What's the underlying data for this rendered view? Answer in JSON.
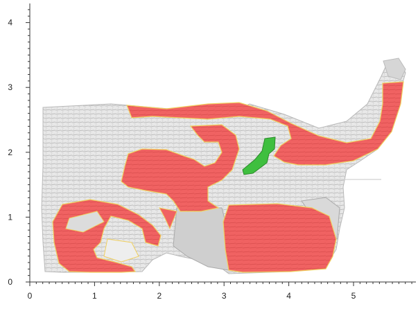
{
  "viewer": {
    "x_axis": {
      "ticks": [
        "0",
        "1",
        "2",
        "3",
        "4",
        "5"
      ],
      "range": [
        0,
        6
      ],
      "minor_per_major": 10
    },
    "y_axis": {
      "ticks": [
        "0",
        "1",
        "2",
        "3",
        "4"
      ],
      "range": [
        0,
        4.3
      ],
      "minor_per_major": 10
    },
    "colors": {
      "surface": "#e6e6e6",
      "surface_shadow": "#a9a9a9",
      "red_region": "#f06060",
      "red_outline": "#f0d060",
      "green_region": "#3fbf3f",
      "axis": "#333333"
    }
  }
}
